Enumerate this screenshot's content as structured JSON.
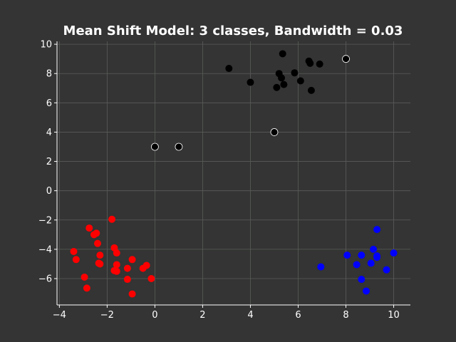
{
  "chart_data": {
    "type": "scatter",
    "title": "Mean Shift Model: 3 classes, Bandwidth = 0.03",
    "xlabel": "",
    "ylabel": "",
    "xlim": [
      -4.1,
      10.7
    ],
    "ylim": [
      -7.8,
      10.2
    ],
    "xticks": [
      -4,
      -2,
      0,
      2,
      4,
      6,
      8,
      10
    ],
    "yticks": [
      -6,
      -4,
      -2,
      0,
      2,
      4,
      6,
      8,
      10
    ],
    "grid": true,
    "legend": "none",
    "colors": {
      "background": "#333433",
      "grid": "#5a5c5a",
      "axis": "#ffffff",
      "text": "#ffffff"
    },
    "series": [
      {
        "color": "#000000",
        "points": [
          [
            3.1,
            8.35
          ],
          [
            4.0,
            7.4
          ],
          [
            5.35,
            9.35
          ],
          [
            5.2,
            8.0
          ],
          [
            5.3,
            7.7
          ],
          [
            5.85,
            8.05
          ],
          [
            5.1,
            7.05
          ],
          [
            5.4,
            7.25
          ],
          [
            6.1,
            7.5
          ],
          [
            6.45,
            8.85
          ],
          [
            6.5,
            8.7
          ],
          [
            6.9,
            8.65
          ],
          [
            6.55,
            6.85
          ]
        ]
      },
      {
        "color": "#ff0000",
        "points": [
          [
            -3.4,
            -4.15
          ],
          [
            -3.3,
            -4.7
          ],
          [
            -2.75,
            -2.55
          ],
          [
            -2.55,
            -3.0
          ],
          [
            -2.45,
            -2.9
          ],
          [
            -2.4,
            -3.6
          ],
          [
            -2.3,
            -4.4
          ],
          [
            -2.35,
            -4.95
          ],
          [
            -2.3,
            -5.0
          ],
          [
            -1.8,
            -1.95
          ],
          [
            -1.7,
            -3.9
          ],
          [
            -1.6,
            -4.25
          ],
          [
            -1.6,
            -5.05
          ],
          [
            -1.7,
            -5.45
          ],
          [
            -1.6,
            -5.5
          ],
          [
            -1.15,
            -5.3
          ],
          [
            -0.95,
            -4.7
          ],
          [
            -1.15,
            -6.05
          ],
          [
            -0.35,
            -5.1
          ],
          [
            -0.5,
            -5.3
          ],
          [
            -0.15,
            -6.0
          ],
          [
            -0.95,
            -7.05
          ],
          [
            -2.95,
            -5.9
          ],
          [
            -2.85,
            -6.65
          ]
        ]
      },
      {
        "color": "#0000ff",
        "points": [
          [
            6.95,
            -5.2
          ],
          [
            8.05,
            -4.4
          ],
          [
            8.45,
            -5.05
          ],
          [
            8.65,
            -4.4
          ],
          [
            8.65,
            -6.05
          ],
          [
            8.85,
            -6.85
          ],
          [
            9.05,
            -4.95
          ],
          [
            9.15,
            -4.0
          ],
          [
            9.3,
            -4.45
          ],
          [
            9.3,
            -4.55
          ],
          [
            9.3,
            -2.65
          ],
          [
            9.7,
            -5.4
          ],
          [
            10.0,
            -4.25
          ]
        ]
      },
      {
        "color": "#000000",
        "edge": "#ffffff",
        "points": [
          [
            0.0,
            3.0
          ],
          [
            1.0,
            3.0
          ],
          [
            5.0,
            4.0
          ],
          [
            8.0,
            9.0
          ]
        ]
      }
    ]
  }
}
